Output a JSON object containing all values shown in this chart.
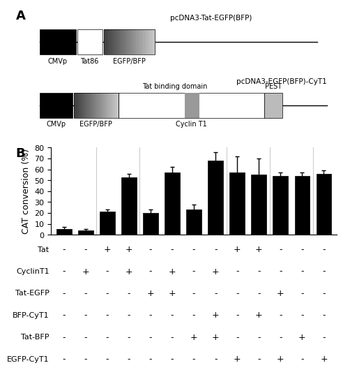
{
  "bar_values": [
    5,
    4,
    21,
    53,
    20,
    57,
    23,
    68,
    57,
    55,
    54,
    54,
    56
  ],
  "bar_errors": [
    2,
    1,
    2,
    3,
    3,
    5,
    5,
    8,
    15,
    15,
    3,
    3,
    3
  ],
  "bar_color": "#000000",
  "bar_width": 0.7,
  "ylim": [
    0,
    80
  ],
  "yticks": [
    0,
    10,
    20,
    30,
    40,
    50,
    60,
    70,
    80
  ],
  "ylabel": "CAT conversion (%)",
  "ylabel_fontsize": 9,
  "tick_fontsize": 8,
  "label_fontsize": 8,
  "group_dividers": [
    1.5,
    3.5,
    7.5,
    9.5,
    11.5
  ],
  "row_labels": [
    "Tat",
    "CyclinT1",
    "Tat-EGFP",
    "BFP-CyT1",
    "Tat-BFP",
    "EGFP-CyT1"
  ],
  "table_data": [
    [
      "-",
      "-",
      "+",
      "+",
      "-",
      "-",
      "-",
      "-",
      "+",
      "+",
      "-",
      "-",
      "-"
    ],
    [
      "-",
      "+",
      "-",
      "+",
      "-",
      "+",
      "-",
      "+",
      "-",
      "-",
      "-",
      "-",
      "-"
    ],
    [
      "-",
      "-",
      "-",
      "-",
      "+",
      "+",
      "-",
      "-",
      "-",
      "-",
      "+",
      "-",
      "-"
    ],
    [
      "-",
      "-",
      "-",
      "-",
      "-",
      "-",
      "-",
      "+",
      "-",
      "+",
      "-",
      "-",
      "-"
    ],
    [
      "-",
      "-",
      "-",
      "-",
      "-",
      "-",
      "+",
      "+",
      "-",
      "-",
      "-",
      "+",
      "-"
    ],
    [
      "-",
      "-",
      "-",
      "-",
      "-",
      "-",
      "-",
      "-",
      "+",
      "-",
      "+",
      "-",
      "+"
    ]
  ],
  "panel_a_label": "A",
  "panel_b_label": "B",
  "title1": "pcDNA3-Tat-EGFP(BFP)",
  "title2": "pcDNA3-EGFP(BFP)-CyT1",
  "fig_bg": "#ffffff",
  "n_grad": 30
}
